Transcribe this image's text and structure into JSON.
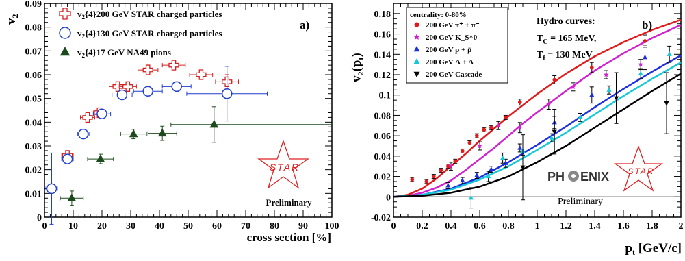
{
  "chart_data": [
    {
      "type": "scatter",
      "panel_label": "a)",
      "xlabel": "cross section [%]",
      "ylabel": "v2",
      "xlim": [
        0,
        100
      ],
      "ylim": [
        0,
        0.09
      ],
      "xticks": [
        0,
        10,
        20,
        30,
        40,
        50,
        60,
        70,
        80,
        90,
        100
      ],
      "yticks": [
        0,
        0.01,
        0.02,
        0.03,
        0.04,
        0.05,
        0.06,
        0.07,
        0.08,
        0.09
      ],
      "legend_position": "top-left",
      "series": [
        {
          "name": "v2{4}200 GeV STAR charged particles",
          "marker": "open-cross",
          "color": "#d42020",
          "points": [
            {
              "x": 8,
              "y": 0.026,
              "xerr": 2,
              "yerr": 0.0012
            },
            {
              "x": 15,
              "y": 0.042,
              "xerr": 2.5,
              "yerr": 0.0012
            },
            {
              "x": 19,
              "y": 0.044,
              "xerr": 2,
              "yerr": 0.001
            },
            {
              "x": 25.5,
              "y": 0.055,
              "xerr": 3,
              "yerr": 0.001
            },
            {
              "x": 29,
              "y": 0.055,
              "xerr": 3,
              "yerr": 0.001
            },
            {
              "x": 36,
              "y": 0.062,
              "xerr": 3.5,
              "yerr": 0.001
            },
            {
              "x": 45,
              "y": 0.064,
              "xerr": 4,
              "yerr": 0.001
            },
            {
              "x": 54.5,
              "y": 0.06,
              "xerr": 4,
              "yerr": 0.001
            },
            {
              "x": 63.5,
              "y": 0.057,
              "xerr": 4,
              "yerr": 0.003
            }
          ]
        },
        {
          "name": "v2{4}130 GeV STAR charged particles",
          "marker": "open-circle",
          "color": "#1f3fd0",
          "points": [
            {
              "x": 2.5,
              "y": 0.012,
              "xerr": 2,
              "yerr": 0.015
            },
            {
              "x": 8,
              "y": 0.0245,
              "xerr": 2,
              "yerr": 0.002
            },
            {
              "x": 13.5,
              "y": 0.035,
              "xerr": 2,
              "yerr": 0.001
            },
            {
              "x": 20,
              "y": 0.0435,
              "xerr": 3,
              "yerr": 0.001
            },
            {
              "x": 27,
              "y": 0.0515,
              "xerr": 3.5,
              "yerr": 0.001
            },
            {
              "x": 36,
              "y": 0.053,
              "xerr": 5,
              "yerr": 0.001
            },
            {
              "x": 46,
              "y": 0.055,
              "xerr": 5,
              "yerr": 0.002
            },
            {
              "x": 63.5,
              "y": 0.052,
              "xerr": 14,
              "yerr": 0.0115
            }
          ]
        },
        {
          "name": "v2{4}17 GeV NA49 pions",
          "marker": "filled-triangle",
          "color": "#1d4a1d",
          "points": [
            {
              "x": 9.5,
              "y": 0.008,
              "xerr": 4,
              "yerr": 0.003
            },
            {
              "x": 19.5,
              "y": 0.0245,
              "xerr": 4.5,
              "yerr": 0.002
            },
            {
              "x": 31,
              "y": 0.035,
              "xerr": 4.5,
              "yerr": 0.002
            },
            {
              "x": 41,
              "y": 0.0353,
              "xerr": 5,
              "yerr": 0.003
            },
            {
              "x": 59,
              "y": 0.039,
              "xerr": 15,
              "yerr": 0.0075,
              "xerr_right": 41
            }
          ]
        }
      ]
    },
    {
      "type": "scatter",
      "panel_label": "b)",
      "xlabel": "pt [GeV/c]",
      "ylabel": "v2(pt)",
      "xlim": [
        0,
        2
      ],
      "ylim": [
        -0.02,
        0.19
      ],
      "xticks": [
        0,
        0.2,
        0.4,
        0.6,
        0.8,
        1,
        1.2,
        1.4,
        1.6,
        1.8,
        2
      ],
      "yticks": [
        -0.02,
        0,
        0.02,
        0.04,
        0.06,
        0.08,
        0.1,
        0.12,
        0.14,
        0.16,
        0.18
      ],
      "legend_title": "centrality: 0-80%",
      "legend_position": "top-left",
      "series": [
        {
          "name": "200 GeV π⁺ + π⁻",
          "marker": "filled-circle",
          "color": "#e01a1a",
          "points": [
            {
              "x": 0.13,
              "y": 0.017,
              "yerr": 0.002
            },
            {
              "x": 0.23,
              "y": 0.015,
              "yerr": 0.002
            },
            {
              "x": 0.28,
              "y": 0.02,
              "yerr": 0.002
            },
            {
              "x": 0.33,
              "y": 0.026,
              "yerr": 0.002
            },
            {
              "x": 0.38,
              "y": 0.03,
              "yerr": 0.002
            },
            {
              "x": 0.43,
              "y": 0.035,
              "yerr": 0.002
            },
            {
              "x": 0.48,
              "y": 0.045,
              "yerr": 0.002
            },
            {
              "x": 0.53,
              "y": 0.053,
              "yerr": 0.002
            },
            {
              "x": 0.58,
              "y": 0.06,
              "yerr": 0.002
            },
            {
              "x": 0.63,
              "y": 0.066,
              "yerr": 0.002
            },
            {
              "x": 0.68,
              "y": 0.068,
              "yerr": 0.002
            },
            {
              "x": 0.78,
              "y": 0.078,
              "yerr": 0.002
            },
            {
              "x": 0.88,
              "y": 0.093,
              "yerr": 0.003
            },
            {
              "x": 1.12,
              "y": 0.115,
              "yerr": 0.004
            },
            {
              "x": 1.38,
              "y": 0.127,
              "yerr": 0.005
            },
            {
              "x": 1.75,
              "y": 0.153,
              "yerr": 0.006
            }
          ]
        },
        {
          "name": "200 GeV K_S^0",
          "marker": "filled-star",
          "color": "#d020d0",
          "points": [
            {
              "x": 0.4,
              "y": 0.03,
              "yerr": 0.004
            },
            {
              "x": 0.6,
              "y": 0.05,
              "yerr": 0.004
            },
            {
              "x": 0.73,
              "y": 0.07,
              "yerr": 0.004
            },
            {
              "x": 0.88,
              "y": 0.068,
              "yerr": 0.005
            },
            {
              "x": 1.08,
              "y": 0.091,
              "yerr": 0.005
            },
            {
              "x": 1.25,
              "y": 0.108,
              "yerr": 0.004
            },
            {
              "x": 1.48,
              "y": 0.12,
              "yerr": 0.004
            },
            {
              "x": 1.72,
              "y": 0.13,
              "yerr": 0.005
            }
          ]
        },
        {
          "name": "200 GeV p + p̄",
          "marker": "filled-triangle-up",
          "color": "#1c2fe0",
          "points": [
            {
              "x": 0.38,
              "y": 0.011,
              "yerr": 0.003
            },
            {
              "x": 0.48,
              "y": 0.016,
              "yerr": 0.003
            },
            {
              "x": 0.58,
              "y": 0.021,
              "yerr": 0.003
            },
            {
              "x": 0.68,
              "y": 0.027,
              "yerr": 0.003
            },
            {
              "x": 0.78,
              "y": 0.033,
              "yerr": 0.004
            },
            {
              "x": 0.88,
              "y": 0.048,
              "yerr": 0.004
            },
            {
              "x": 1.12,
              "y": 0.073,
              "yerr": 0.006
            },
            {
              "x": 1.38,
              "y": 0.1,
              "yerr": 0.008
            },
            {
              "x": 1.75,
              "y": 0.137,
              "yerr": 0.012
            }
          ]
        },
        {
          "name": "200 GeV Λ + Λ̄",
          "marker": "filled-triangle-up",
          "color": "#14c8d8",
          "points": [
            {
              "x": 0.54,
              "y": -0.001,
              "yerr": 0.01
            },
            {
              "x": 0.66,
              "y": 0.02,
              "yerr": 0.005
            },
            {
              "x": 0.76,
              "y": 0.038,
              "yerr": 0.005
            },
            {
              "x": 0.9,
              "y": 0.045,
              "yerr": 0.004
            },
            {
              "x": 1.1,
              "y": 0.058,
              "yerr": 0.004
            },
            {
              "x": 1.3,
              "y": 0.078,
              "yerr": 0.004
            },
            {
              "x": 1.5,
              "y": 0.105,
              "yerr": 0.004
            },
            {
              "x": 1.72,
              "y": 0.121,
              "yerr": 0.005
            },
            {
              "x": 1.92,
              "y": 0.14,
              "yerr": 0.008
            }
          ]
        },
        {
          "name": "200 GeV Cascade",
          "marker": "filled-triangle-down",
          "color": "#000000",
          "points": [
            {
              "x": 0.9,
              "y": 0.029,
              "yerr": 0.032
            },
            {
              "x": 1.12,
              "y": 0.064,
              "yerr": 0.022
            },
            {
              "x": 1.55,
              "y": 0.097,
              "yerr": 0.025
            },
            {
              "x": 1.9,
              "y": 0.092,
              "yerr": 0.03
            }
          ]
        }
      ],
      "hydro_curves": [
        {
          "color": "#e01a1a",
          "x": [
            0,
            0.1,
            0.2,
            0.3,
            0.4,
            0.5,
            0.6,
            0.7,
            0.8,
            0.9,
            1.0,
            1.2,
            1.4,
            1.6,
            1.8,
            2.0
          ],
          "y": [
            0,
            0.002,
            0.008,
            0.018,
            0.03,
            0.042,
            0.055,
            0.067,
            0.079,
            0.09,
            0.101,
            0.121,
            0.138,
            0.152,
            0.164,
            0.174
          ]
        },
        {
          "color": "#d020d0",
          "x": [
            0,
            0.1,
            0.2,
            0.3,
            0.4,
            0.5,
            0.6,
            0.7,
            0.8,
            0.9,
            1.0,
            1.2,
            1.4,
            1.6,
            1.8,
            2.0
          ],
          "y": [
            0,
            0.001,
            0.004,
            0.009,
            0.016,
            0.026,
            0.037,
            0.048,
            0.06,
            0.072,
            0.083,
            0.104,
            0.124,
            0.141,
            0.156,
            0.169
          ]
        },
        {
          "color": "#1c2fe0",
          "x": [
            0,
            0.2,
            0.4,
            0.6,
            0.8,
            1.0,
            1.2,
            1.4,
            1.6,
            1.8,
            2.0
          ],
          "y": [
            0,
            0.002,
            0.008,
            0.019,
            0.034,
            0.051,
            0.069,
            0.088,
            0.106,
            0.123,
            0.139
          ]
        },
        {
          "color": "#14c8d8",
          "x": [
            0,
            0.2,
            0.4,
            0.6,
            0.8,
            1.0,
            1.2,
            1.4,
            1.6,
            1.8,
            2.0
          ],
          "y": [
            0,
            0.002,
            0.007,
            0.017,
            0.03,
            0.046,
            0.063,
            0.081,
            0.099,
            0.116,
            0.132
          ]
        },
        {
          "color": "#000000",
          "x": [
            0,
            0.2,
            0.4,
            0.6,
            0.8,
            1.0,
            1.2,
            1.4,
            1.6,
            1.8,
            2.0
          ],
          "y": [
            0,
            0.001,
            0.004,
            0.01,
            0.02,
            0.034,
            0.05,
            0.068,
            0.086,
            0.104,
            0.121
          ]
        }
      ]
    }
  ],
  "annotations": {
    "star_logo_text": "STAR",
    "preliminary_a": "Preliminary",
    "preliminary_b": "Preliminary",
    "phoenix_logo_text": "PHENIX",
    "hydro_title": "Hydro curves:",
    "hydro_tc": "T_C = 165 MeV,",
    "hydro_tf": "T_f = 130 MeV"
  },
  "colors": {
    "star_red": "#e02020",
    "phoenix_grey": "#333333"
  }
}
